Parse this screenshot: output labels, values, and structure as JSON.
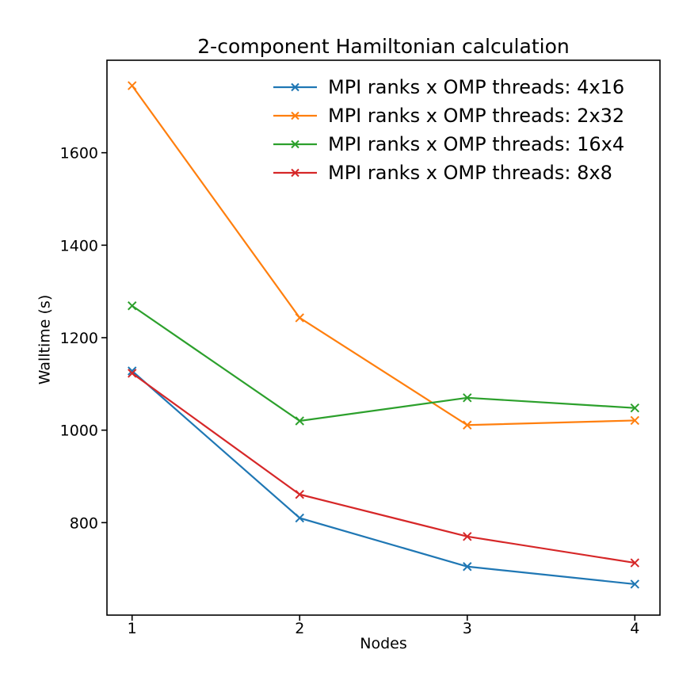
{
  "chart_data": {
    "type": "line",
    "title": "2-component Hamiltonian calculation",
    "xlabel": "Nodes",
    "ylabel": "Walltime (s)",
    "x": [
      1,
      2,
      3,
      4
    ],
    "xtick_labels": [
      "1",
      "2",
      "3",
      "4"
    ],
    "yticks": [
      800,
      1000,
      1200,
      1400,
      1600
    ],
    "xlim": [
      0.85,
      4.15
    ],
    "ylim": [
      600,
      1800
    ],
    "grid": false,
    "legend_position": "upper right inside, no frame",
    "marker": "x",
    "series": [
      {
        "name": "MPI ranks x OMP threads: 4x16",
        "color": "#1f77b4",
        "values": [
          1128,
          810,
          705,
          667
        ]
      },
      {
        "name": "MPI ranks x OMP threads: 2x32",
        "color": "#ff7f0e",
        "values": [
          1745,
          1243,
          1011,
          1021
        ]
      },
      {
        "name": "MPI ranks x OMP threads: 16x4",
        "color": "#2ca02c",
        "values": [
          1269,
          1020,
          1070,
          1048
        ]
      },
      {
        "name": "MPI ranks x OMP threads: 8x8",
        "color": "#d62728",
        "values": [
          1123,
          861,
          770,
          713
        ]
      }
    ]
  }
}
